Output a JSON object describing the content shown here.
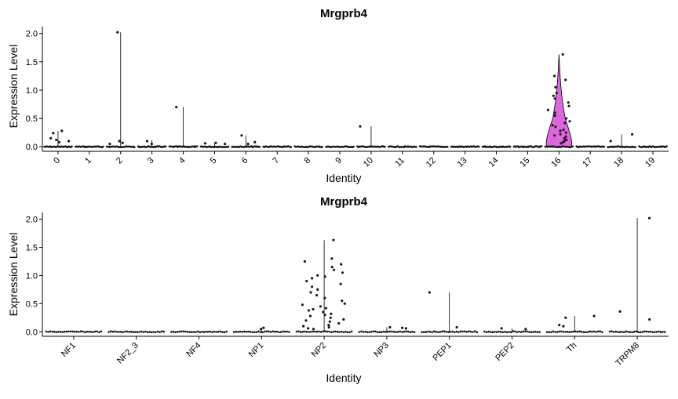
{
  "chart_data": [
    {
      "type": "violin",
      "title": "Mrgprb4",
      "xlabel": "Identity",
      "ylabel": "Expression Level",
      "ylim": [
        -0.08,
        2.12
      ],
      "yticks": [
        "0.0",
        "0.5",
        "1.0",
        "1.5",
        "2.0"
      ],
      "ytick_values": [
        0,
        0.5,
        1.0,
        1.5,
        2.0
      ],
      "grid": false,
      "violin_color": "#e066e0",
      "categories": [
        "0",
        "1",
        "2",
        "3",
        "4",
        "5",
        "6",
        "7",
        "8",
        "9",
        "10",
        "11",
        "12",
        "13",
        "14",
        "15",
        "16",
        "17",
        "18",
        "19"
      ],
      "max_values": [
        0.28,
        0.0,
        2.02,
        0.12,
        0.7,
        0.07,
        0.2,
        0.0,
        0.0,
        0.0,
        0.36,
        0.0,
        0.0,
        0.0,
        0.0,
        0.0,
        1.63,
        0.0,
        0.22,
        0.0
      ],
      "outliers": [
        [
          0.12,
          0.08,
          0.28,
          0.24,
          0.15,
          0.1
        ],
        [],
        [
          0.05,
          2.02,
          0.07,
          0.1
        ],
        [
          0.1,
          0.05
        ],
        [
          0.7
        ],
        [
          0.06,
          0.05,
          0.07
        ],
        [
          0.2,
          0.08,
          0.05
        ],
        [],
        [],
        [],
        [
          0.36
        ],
        [],
        [],
        [],
        [],
        [],
        [
          1.63,
          1.25,
          1.18,
          1.05,
          0.95,
          0.9,
          0.85,
          0.78,
          0.72,
          0.65,
          0.6,
          0.55,
          0.5,
          0.45,
          0.42,
          0.38,
          0.35,
          0.3,
          0.28,
          0.25,
          0.22,
          0.2,
          0.18,
          0.15,
          0.12,
          0.1,
          0.08,
          0.06
        ],
        [],
        [
          0.22,
          0.1
        ],
        []
      ]
    },
    {
      "type": "violin",
      "title": "Mrgprb4",
      "xlabel": "Identity",
      "ylabel": "Expression Level",
      "ylim": [
        -0.08,
        2.12
      ],
      "yticks": [
        "0.0",
        "0.5",
        "1.0",
        "1.5",
        "2.0"
      ],
      "ytick_values": [
        0,
        0.5,
        1.0,
        1.5,
        2.0
      ],
      "grid": false,
      "violin_color": "#e066e0",
      "categories": [
        "NF1",
        "NF2_3",
        "NF4",
        "NP1",
        "NP2",
        "NP3",
        "PEP1",
        "PEP2",
        "Th",
        "TRPM8"
      ],
      "max_values": [
        0.0,
        0.0,
        0.0,
        0.07,
        1.63,
        0.08,
        0.7,
        0.06,
        0.28,
        2.02
      ],
      "outliers": [
        [],
        [],
        [],
        [
          0.07,
          0.05
        ],
        [
          1.63,
          1.3,
          1.25,
          1.2,
          1.15,
          1.1,
          1.05,
          1.0,
          0.98,
          0.95,
          0.9,
          0.85,
          0.8,
          0.75,
          0.7,
          0.65,
          0.6,
          0.55,
          0.5,
          0.48,
          0.45,
          0.42,
          0.4,
          0.38,
          0.35,
          0.32,
          0.3,
          0.28,
          0.25,
          0.22,
          0.2,
          0.18,
          0.15,
          0.12,
          0.1,
          0.08,
          0.06,
          0.05
        ],
        [
          0.08,
          0.06,
          0.07
        ],
        [
          0.7,
          0.08
        ],
        [
          0.06,
          0.05
        ],
        [
          0.1,
          0.28,
          0.12,
          0.25
        ],
        [
          0.36,
          2.02,
          0.22
        ]
      ]
    }
  ]
}
